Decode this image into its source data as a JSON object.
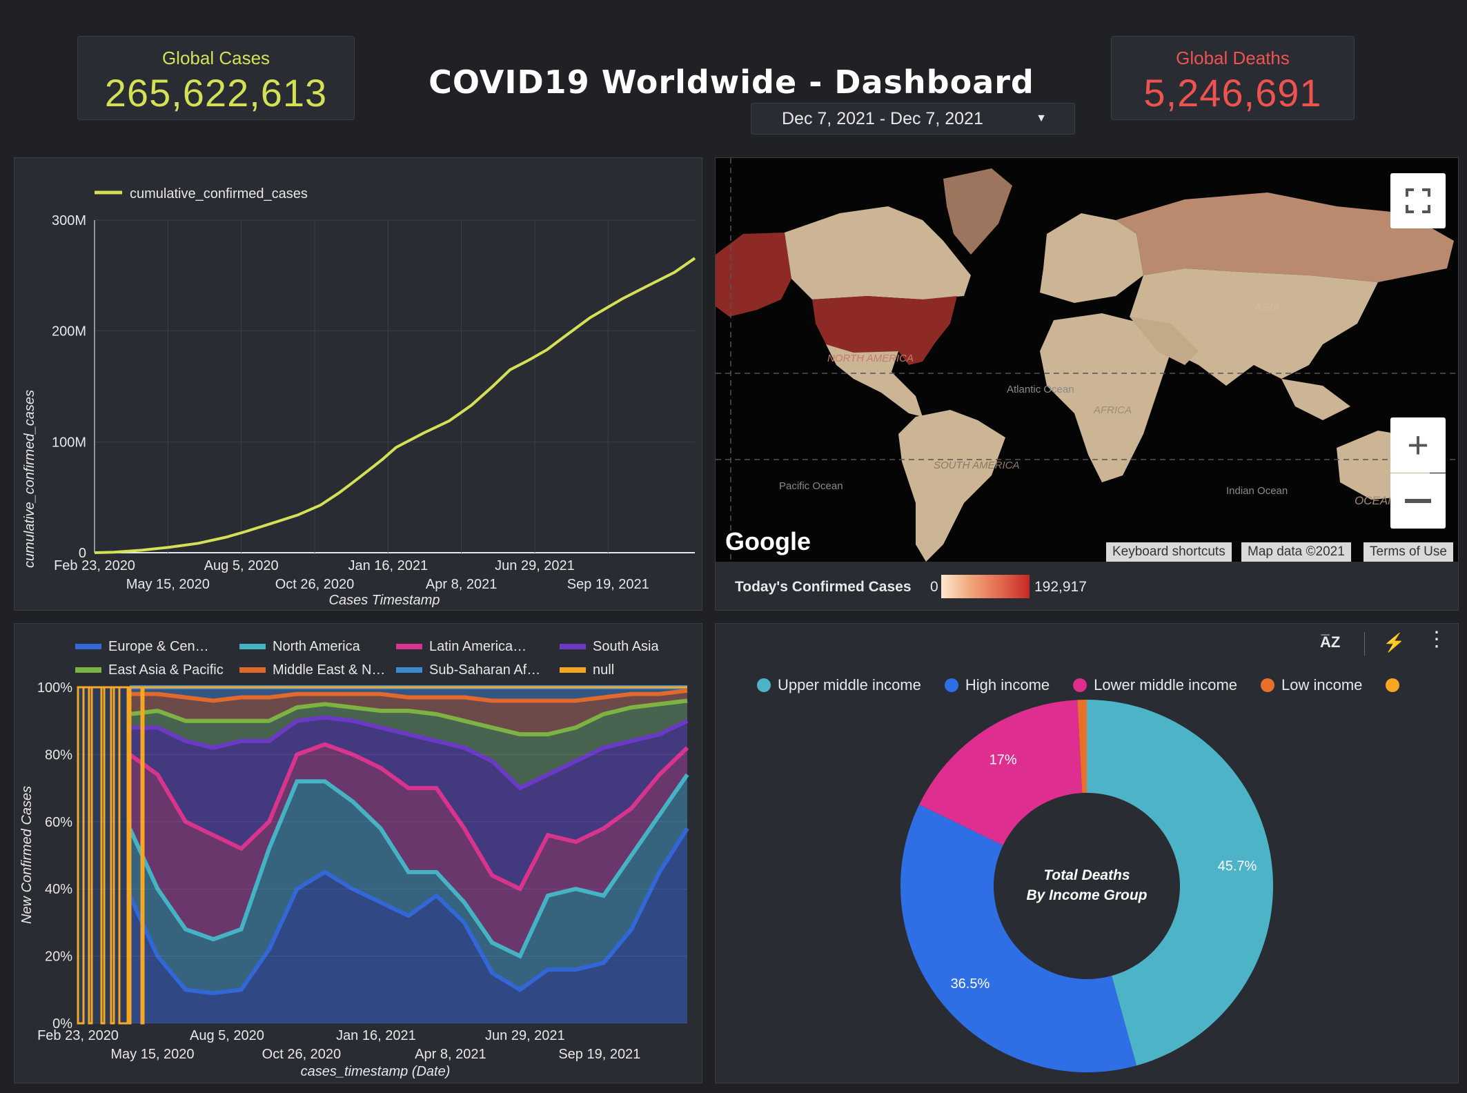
{
  "header": {
    "title": "COVID19 Worldwide - Dashboard",
    "global_cases_label": "Global Cases",
    "global_cases_value": "265,622,613",
    "global_deaths_label": "Global Deaths",
    "global_deaths_value": "5,246,691",
    "date_range": "Dec 7, 2021 - Dec 7, 2021"
  },
  "map": {
    "legend_label": "Today's Confirmed Cases",
    "legend_min": "0",
    "legend_max": "192,917",
    "provider": "Google",
    "keyboard_shortcuts": "Keyboard shortcuts",
    "map_data": "Map data ©2021",
    "terms": "Terms of Use",
    "labels": [
      "NORTH AMERICA",
      "SOUTH AMERICA",
      "ASIA",
      "AFRICA",
      "OCEANIA",
      "Atlantic Ocean",
      "Pacific Ocean",
      "Indian Ocean"
    ],
    "colors": {
      "high": "#8e2a25",
      "mid": "#b98a6e",
      "low": "#cbb595",
      "water": "#050505"
    }
  },
  "chart_data": [
    {
      "type": "line",
      "legend": "cumulative_confirmed_cases",
      "xlabel": "Cases Timestamp",
      "ylabel": "cumulative_confirmed_cases",
      "x_ticks": [
        "Feb 23, 2020",
        "May 15, 2020",
        "Aug 5, 2020",
        "Oct 26, 2020",
        "Jan 16, 2021",
        "Apr 8, 2021",
        "Jun 29, 2021",
        "Sep 19, 2021"
      ],
      "y_ticks": [
        "0",
        "100M",
        "200M",
        "300M"
      ],
      "ylim": [
        0,
        300000000
      ],
      "color": "#d4e157",
      "series": [
        {
          "name": "cumulative_confirmed_cases",
          "x": [
            "2020-02-23",
            "2020-03-15",
            "2020-04-15",
            "2020-05-15",
            "2020-06-15",
            "2020-07-15",
            "2020-08-05",
            "2020-09-01",
            "2020-10-01",
            "2020-10-26",
            "2020-11-15",
            "2020-12-01",
            "2020-12-15",
            "2021-01-01",
            "2021-01-16",
            "2021-02-15",
            "2021-03-15",
            "2021-04-08",
            "2021-05-01",
            "2021-05-20",
            "2021-06-10",
            "2021-06-29",
            "2021-07-15",
            "2021-08-15",
            "2021-09-19",
            "2021-10-15",
            "2021-11-15",
            "2021-12-07"
          ],
          "y": [
            0,
            500000,
            2300000,
            5000000,
            8500000,
            14000000,
            19000000,
            26000000,
            34000000,
            43000000,
            54000000,
            64000000,
            73000000,
            84000000,
            95000000,
            108000000,
            119000000,
            133000000,
            150000000,
            165000000,
            174000000,
            183000000,
            193000000,
            212000000,
            229000000,
            240000000,
            253000000,
            265622613
          ]
        }
      ]
    },
    {
      "type": "area",
      "stacked_percent": true,
      "xlabel": "cases_timestamp (Date)",
      "ylabel": "New Confirmed Cases",
      "x_ticks": [
        "Feb 23, 2020",
        "May 15, 2020",
        "Aug 5, 2020",
        "Oct 26, 2020",
        "Jan 16, 2021",
        "Apr 8, 2021",
        "Jun 29, 2021",
        "Sep 19, 2021"
      ],
      "y_ticks": [
        "0%",
        "20%",
        "40%",
        "60%",
        "80%",
        "100%"
      ],
      "legend": [
        {
          "name": "Europe & Cen…",
          "color": "#3367d6"
        },
        {
          "name": "North America",
          "color": "#45b3c4"
        },
        {
          "name": "Latin America…",
          "color": "#d8348e"
        },
        {
          "name": "South Asia",
          "color": "#6a3ac7"
        },
        {
          "name": "East Asia & Pacific",
          "color": "#7cb342"
        },
        {
          "name": "Middle East & N…",
          "color": "#e0692b"
        },
        {
          "name": "Sub-Saharan Af…",
          "color": "#3b8bd3"
        },
        {
          "name": "null",
          "color": "#f5a623"
        }
      ],
      "x": [
        "2020-04",
        "2020-05",
        "2020-06",
        "2020-07",
        "2020-08",
        "2020-09",
        "2020-10",
        "2020-11",
        "2020-12",
        "2021-01",
        "2021-02",
        "2021-03",
        "2021-04",
        "2021-05",
        "2021-06",
        "2021-07",
        "2021-08",
        "2021-09",
        "2021-10",
        "2021-11",
        "2021-12"
      ],
      "cumulative_boundaries_percent": {
        "Europe & Cen…": [
          38,
          20,
          10,
          9,
          10,
          22,
          40,
          45,
          40,
          36,
          32,
          38,
          30,
          15,
          10,
          16,
          16,
          18,
          28,
          45,
          58
        ],
        "North America": [
          58,
          40,
          28,
          25,
          28,
          52,
          72,
          72,
          66,
          58,
          45,
          45,
          36,
          24,
          20,
          38,
          40,
          38,
          50,
          62,
          74
        ],
        "Latin America…": [
          80,
          74,
          60,
          56,
          52,
          60,
          80,
          83,
          80,
          76,
          70,
          70,
          58,
          44,
          40,
          56,
          54,
          58,
          64,
          74,
          82
        ],
        "South Asia": [
          88,
          88,
          84,
          82,
          84,
          84,
          90,
          91,
          90,
          88,
          86,
          84,
          82,
          78,
          70,
          74,
          78,
          82,
          84,
          86,
          90
        ],
        "East Asia & Pacific": [
          92,
          93,
          90,
          90,
          90,
          90,
          94,
          95,
          94,
          93,
          93,
          92,
          90,
          88,
          86,
          86,
          88,
          92,
          94,
          95,
          96
        ],
        "Middle East & N…": [
          98,
          98,
          97,
          96,
          97,
          97,
          98,
          98,
          98,
          98,
          97,
          97,
          97,
          96,
          96,
          96,
          96,
          97,
          98,
          98,
          99
        ],
        "Sub-Saharan Af…": [
          100,
          100,
          100,
          100,
          100,
          100,
          100,
          100,
          100,
          100,
          100,
          100,
          100,
          100,
          100,
          100,
          100,
          100,
          100,
          100,
          100
        ]
      }
    },
    {
      "type": "pie",
      "donut": true,
      "center_label_line1": "Total Deaths",
      "center_label_line2": "By Income Group",
      "slices": [
        {
          "name": "Upper middle income",
          "value": 45.7,
          "color": "#4db3c7",
          "label": "45.7%"
        },
        {
          "name": "High income",
          "value": 36.5,
          "color": "#2f6fe6",
          "label": "36.5%"
        },
        {
          "name": "Lower middle income",
          "value": 17,
          "color": "#de2e8f",
          "label": "17%"
        },
        {
          "name": "Low income",
          "value": 0.8,
          "color": "#e8702a",
          "label": ""
        }
      ],
      "legend": [
        {
          "name": "Upper middle income",
          "color": "#4db3c7"
        },
        {
          "name": "High income",
          "color": "#2f6fe6"
        },
        {
          "name": "Lower middle income",
          "color": "#de2e8f"
        },
        {
          "name": "Low income",
          "color": "#e8702a"
        },
        {
          "name": "",
          "color": "#f5a623"
        }
      ]
    }
  ]
}
